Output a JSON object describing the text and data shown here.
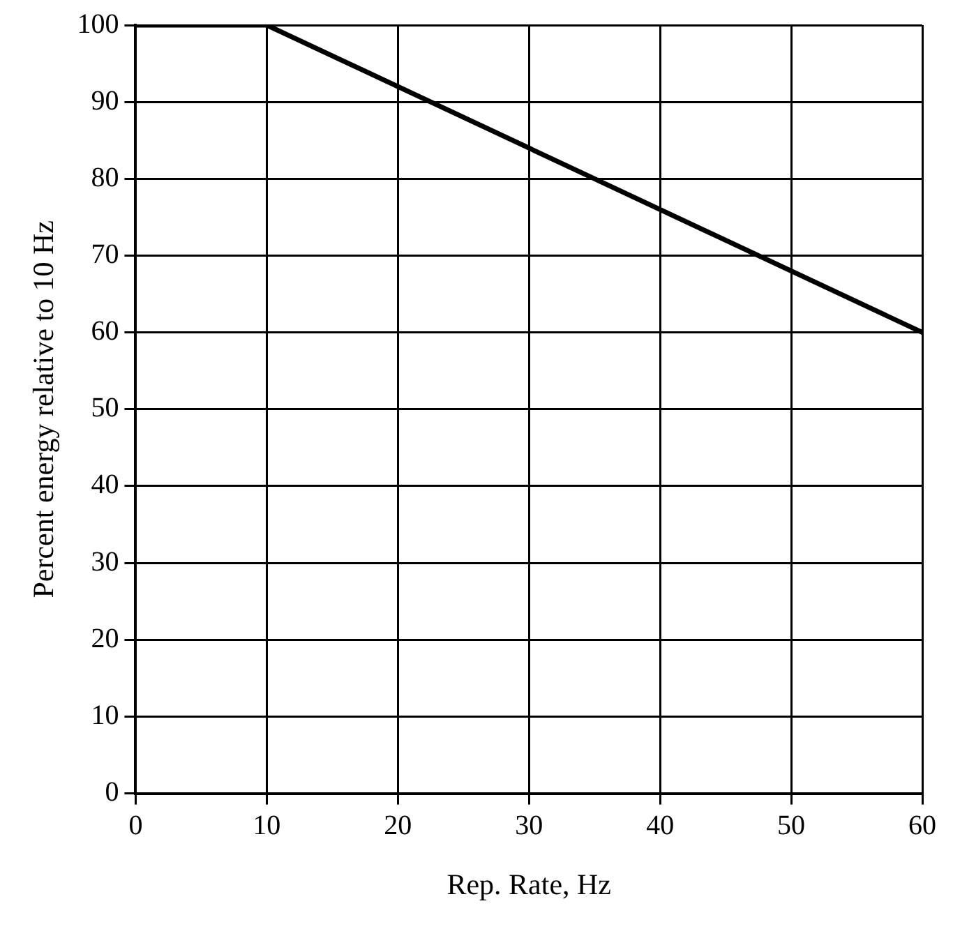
{
  "chart_data": {
    "type": "line",
    "xlabel": "Rep. Rate, Hz",
    "ylabel": "Percent energy relative to 10 Hz",
    "x": [
      0,
      10,
      60
    ],
    "series": [
      {
        "color": "#000000",
        "values": [
          100,
          100,
          60
        ]
      }
    ],
    "xlim": [
      0,
      60
    ],
    "xticks": [
      0,
      10,
      20,
      30,
      40,
      50,
      60
    ],
    "ylim": [
      0,
      100
    ],
    "yticks": [
      0,
      10,
      20,
      30,
      40,
      50,
      60,
      70,
      80,
      90,
      100
    ],
    "grid": true,
    "legend": false,
    "marker": "none",
    "line_style": "solid"
  }
}
